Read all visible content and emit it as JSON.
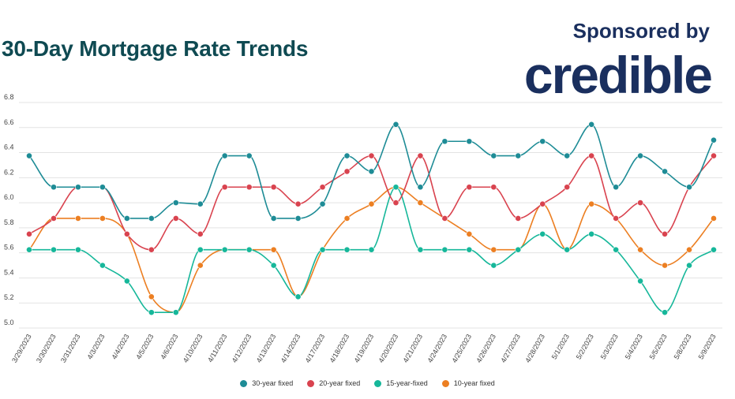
{
  "header": {
    "title": "30-Day Mortgage Rate Trends",
    "sponsor_text": "Sponsored by",
    "sponsor_logo": "credible"
  },
  "colors": {
    "title": "#0f4a52",
    "logo": "#1a2f5e",
    "grid": "#e3e3e3",
    "axis_text": "#444444"
  },
  "chart_data": {
    "type": "line",
    "title": "30-Day Mortgage Rate Trends",
    "xlabel": "",
    "ylabel": "",
    "ylim": [
      5.0,
      6.8
    ],
    "yticks": [
      5.0,
      5.2,
      5.4,
      5.6,
      5.8,
      6.0,
      6.2,
      6.4,
      6.6,
      6.8
    ],
    "grid": true,
    "legend_position": "bottom",
    "categories": [
      "3/29/2023",
      "3/30/2023",
      "3/31/2023",
      "4/3/2023",
      "4/4/2023",
      "4/5/2023",
      "4/6/2023",
      "4/10/2023",
      "4/11/2023",
      "4/12/2023",
      "4/13/2023",
      "4/14/2023",
      "4/17/2023",
      "4/18/2023",
      "4/19/2023",
      "4/20/2023",
      "4/21/2023",
      "4/24/2023",
      "4/25/2023",
      "4/26/2023",
      "4/27/2023",
      "4/28/2023",
      "5/1/2023",
      "5/2/2023",
      "5/3/2023",
      "5/4/2023",
      "5/5/2023",
      "5/8/2023",
      "5/9/2023"
    ],
    "series": [
      {
        "name": "30-year fixed",
        "color": "#1e8c96",
        "values": [
          6.375,
          6.125,
          6.125,
          6.125,
          5.875,
          5.875,
          6.0,
          5.99,
          6.375,
          6.375,
          5.875,
          5.875,
          5.99,
          6.375,
          6.25,
          6.625,
          6.125,
          6.49,
          6.49,
          6.375,
          6.375,
          6.49,
          6.375,
          6.625,
          6.125,
          6.375,
          6.25,
          6.125,
          6.5
        ]
      },
      {
        "name": "20-year fixed",
        "color": "#d9434f",
        "values": [
          5.75,
          5.875,
          6.125,
          6.125,
          5.75,
          5.625,
          5.875,
          5.75,
          6.125,
          6.125,
          6.125,
          5.99,
          6.125,
          6.25,
          6.375,
          6.0,
          6.375,
          5.875,
          6.125,
          6.125,
          5.875,
          5.99,
          6.125,
          6.375,
          5.875,
          6.0,
          5.75,
          6.125,
          6.375
        ]
      },
      {
        "name": "15-year-fixed",
        "color": "#16b79a",
        "values": [
          5.625,
          5.625,
          5.625,
          5.5,
          5.375,
          5.125,
          5.125,
          5.625,
          5.625,
          5.625,
          5.5,
          5.25,
          5.625,
          5.625,
          5.625,
          6.125,
          5.625,
          5.625,
          5.625,
          5.5,
          5.625,
          5.75,
          5.625,
          5.75,
          5.625,
          5.375,
          5.125,
          5.5,
          5.625
        ]
      },
      {
        "name": "10-year fixed",
        "color": "#ec7f22",
        "values": [
          5.625,
          5.875,
          5.875,
          5.875,
          5.75,
          5.25,
          5.125,
          5.5,
          5.625,
          5.625,
          5.625,
          5.25,
          5.625,
          5.875,
          5.99,
          6.125,
          6.0,
          5.875,
          5.75,
          5.625,
          5.625,
          5.99,
          5.625,
          5.99,
          5.875,
          5.625,
          5.5,
          5.625,
          5.875
        ]
      }
    ]
  }
}
